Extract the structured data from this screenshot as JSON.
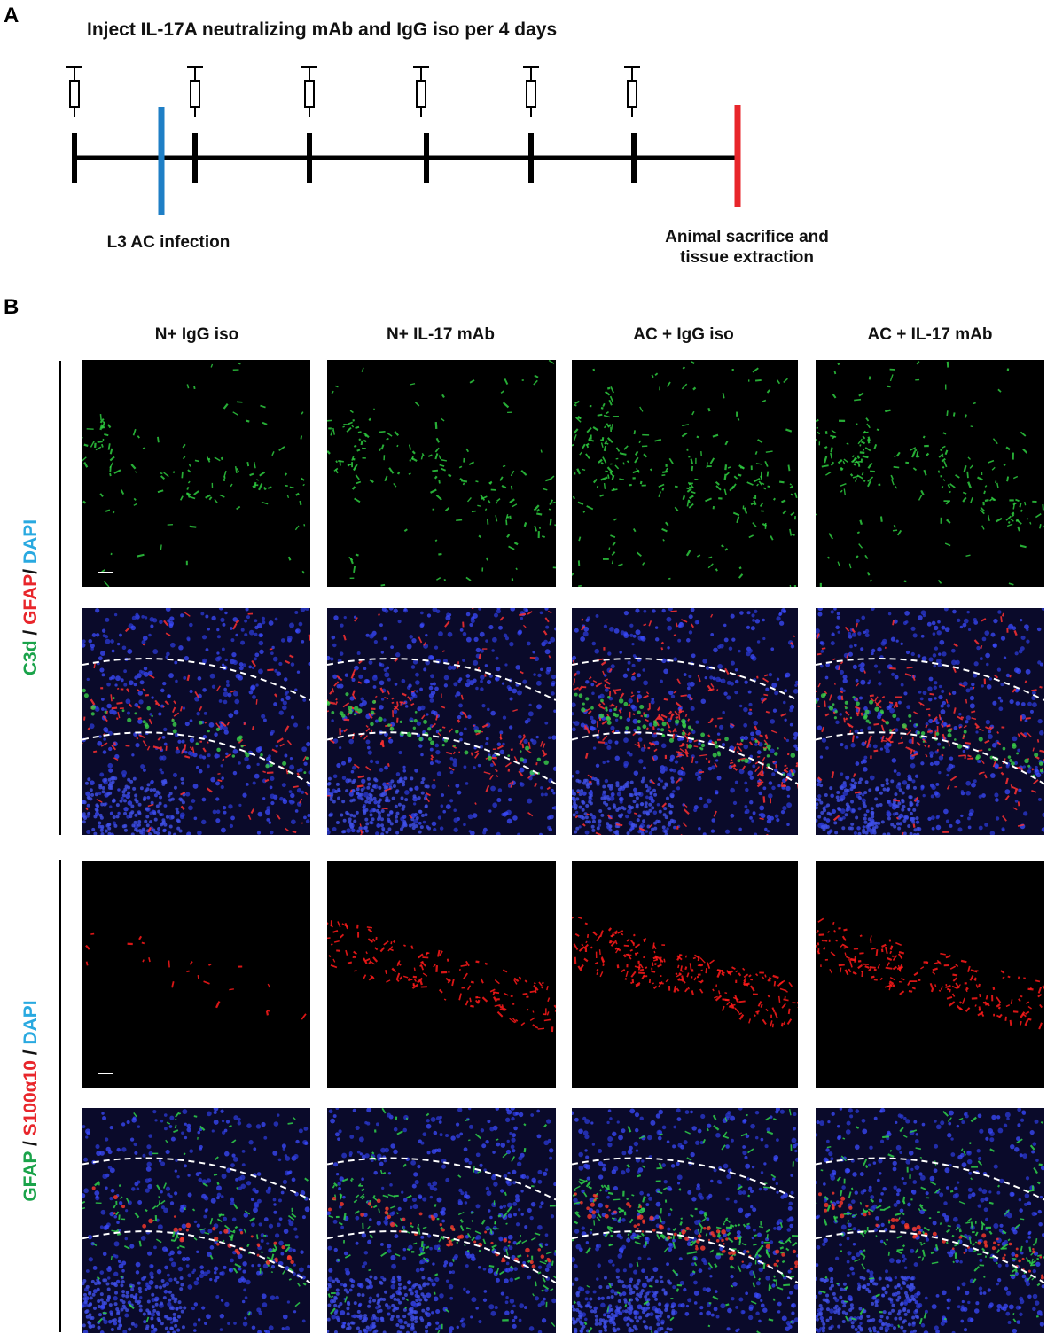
{
  "panel_a": {
    "letter": "A",
    "title": "Inject IL-17A neutralizing mAb and IgG iso per 4 days",
    "infection_label": "L3 AC infection",
    "end_label_line1": "Animal sacrifice and",
    "end_label_line2": "tissue extraction",
    "colors": {
      "infection": "#1f7fc6",
      "sacrifice": "#e8262b",
      "axis": "#000000"
    },
    "injection_count": 6,
    "syringe_icon": "syringe-icon"
  },
  "panel_b": {
    "letter": "B",
    "columns": [
      "N+ IgG iso",
      "N+ IL-17 mAb",
      "AC + IgG iso",
      "AC + IL-17 mAb"
    ],
    "row_group_1": {
      "label_parts": [
        {
          "text": "C3d",
          "color": "#1aa34a"
        },
        {
          "text": " / ",
          "color": "#111111"
        },
        {
          "text": "GFAP",
          "color": "#e8262b"
        },
        {
          "text": "/ ",
          "color": "#111111"
        },
        {
          "text": "DAPI",
          "color": "#29a9e0"
        }
      ]
    },
    "row_group_2": {
      "label_parts": [
        {
          "text": "GFAP",
          "color": "#1aa34a"
        },
        {
          "text": " / ",
          "color": "#111111"
        },
        {
          "text": "S100α10",
          "color": "#e8262b"
        },
        {
          "text": " / ",
          "color": "#111111"
        },
        {
          "text": "DAPI",
          "color": "#29a9e0"
        }
      ]
    }
  }
}
